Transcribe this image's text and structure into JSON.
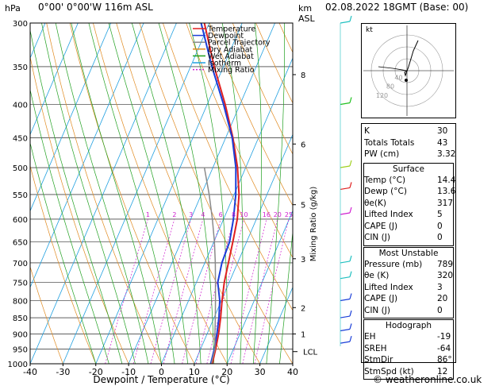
{
  "header": {
    "location": "0°00' 0°00'W 116m ASL",
    "datetime": "02.08.2022 18GMT (Base: 00)",
    "pressure_unit": "hPa",
    "height_unit": "km",
    "height_sub": "ASL"
  },
  "credit": "© weatheronline.co.uk",
  "colors": {
    "temperature": "#e02020",
    "dewpoint": "#1a3ed8",
    "parcel": "#8a8a8a",
    "dry_adiabat": "#e08a20",
    "wet_adiabat": "#20a020",
    "isotherm": "#20a0e0",
    "mixing_ratio": "#d020d0"
  },
  "legend": [
    {
      "label": "Temperature",
      "key": "temperature",
      "dash": false
    },
    {
      "label": "Dewpoint",
      "key": "dewpoint",
      "dash": false
    },
    {
      "label": "Parcel Trajectory",
      "key": "parcel",
      "dash": false
    },
    {
      "label": "Dry Adiabat",
      "key": "dry_adiabat",
      "dash": false
    },
    {
      "label": "Wet Adiabat",
      "key": "wet_adiabat",
      "dash": false
    },
    {
      "label": "Isotherm",
      "key": "isotherm",
      "dash": false
    },
    {
      "label": "Mixing Ratio",
      "key": "mixing_ratio",
      "dash": true
    }
  ],
  "chart_data": {
    "type": "line",
    "xlabel": "Dewpoint / Temperature (°C)",
    "ylabel": "",
    "y2label": "Mixing Ratio (g/kg)",
    "xlim": [
      -40,
      40
    ],
    "ylim": [
      1000,
      300
    ],
    "y_scale": "log",
    "x_ticks": [
      -40,
      -30,
      -20,
      -10,
      0,
      10,
      20,
      30,
      40
    ],
    "p_ticks": [
      300,
      350,
      400,
      450,
      500,
      550,
      600,
      650,
      700,
      750,
      800,
      850,
      900,
      950,
      1000
    ],
    "km_ticks": [
      {
        "p": 360,
        "label": "8"
      },
      {
        "p": 460,
        "label": "6"
      },
      {
        "p": 570,
        "label": "5"
      },
      {
        "p": 690,
        "label": "3"
      },
      {
        "p": 820,
        "label": "2"
      },
      {
        "p": 900,
        "label": "1"
      }
    ],
    "lcl_label": "LCL",
    "lcl_p": 958,
    "mixing_ratio_labels": [
      {
        "label": "1",
        "value": 1
      },
      {
        "label": "2",
        "value": 2
      },
      {
        "label": "3",
        "value": 3
      },
      {
        "label": "4",
        "value": 4
      },
      {
        "label": "6",
        "value": 6
      },
      {
        "label": "8",
        "value": 8
      },
      {
        "label": "10",
        "value": 10
      },
      {
        "label": "16",
        "value": 16
      },
      {
        "label": "20",
        "value": 20
      },
      {
        "label": "25",
        "value": 25
      }
    ],
    "series": [
      {
        "name": "Temperature",
        "key": "temperature",
        "points": [
          [
            1000,
            15.5
          ],
          [
            950,
            14.6
          ],
          [
            900,
            13.5
          ],
          [
            850,
            12
          ],
          [
            800,
            10.2
          ],
          [
            750,
            8.5
          ],
          [
            700,
            7.2
          ],
          [
            650,
            5.8
          ],
          [
            600,
            4.2
          ],
          [
            550,
            1.5
          ],
          [
            500,
            -2.5
          ],
          [
            450,
            -7.8
          ],
          [
            400,
            -14.5
          ],
          [
            350,
            -22.8
          ],
          [
            300,
            -31.5
          ]
        ]
      },
      {
        "name": "Dewpoint",
        "key": "dewpoint",
        "points": [
          [
            1000,
            15.0
          ],
          [
            950,
            14.2
          ],
          [
            900,
            13.0
          ],
          [
            850,
            11.5
          ],
          [
            800,
            9.5
          ],
          [
            750,
            6.5
          ],
          [
            700,
            5.2
          ],
          [
            650,
            4.8
          ],
          [
            600,
            3.0
          ],
          [
            550,
            0.5
          ],
          [
            500,
            -3.0
          ],
          [
            450,
            -8.0
          ],
          [
            400,
            -15.0
          ],
          [
            350,
            -23.5
          ],
          [
            300,
            -32.5
          ]
        ]
      },
      {
        "name": "Parcel Trajectory",
        "key": "parcel",
        "points": [
          [
            1000,
            15.2
          ],
          [
            950,
            14.4
          ],
          [
            900,
            12.4
          ],
          [
            850,
            10.4
          ],
          [
            800,
            8.2
          ],
          [
            750,
            5.8
          ],
          [
            700,
            3.2
          ],
          [
            650,
            0.2
          ],
          [
            600,
            -3.4
          ],
          [
            550,
            -7.6
          ],
          [
            500,
            -12.6
          ]
        ]
      }
    ]
  },
  "hodograph": {
    "unit": "kt",
    "ring_labels": [
      "40",
      "80",
      "120"
    ]
  },
  "indices": [
    {
      "label": "K",
      "value": "30"
    },
    {
      "label": "Totals Totals",
      "value": "43"
    },
    {
      "label": "PW (cm)",
      "value": "3.32"
    }
  ],
  "surface": {
    "title": "Surface",
    "rows": [
      {
        "label": "Temp (°C)",
        "value": "14.4"
      },
      {
        "label": "Dewp (°C)",
        "value": "13.6"
      },
      {
        "label": "θe(K)",
        "value": "317"
      },
      {
        "label": "Lifted Index",
        "value": "5"
      },
      {
        "label": "CAPE (J)",
        "value": "0"
      },
      {
        "label": "CIN (J)",
        "value": "0"
      }
    ]
  },
  "most_unstable": {
    "title": "Most Unstable",
    "rows": [
      {
        "label": "Pressure (mb)",
        "value": "789"
      },
      {
        "label": "θe (K)",
        "value": "320"
      },
      {
        "label": "Lifted Index",
        "value": "3"
      },
      {
        "label": "CAPE (J)",
        "value": "20"
      },
      {
        "label": "CIN (J)",
        "value": "0"
      }
    ]
  },
  "hodograph_table": {
    "title": "Hodograph",
    "rows": [
      {
        "label": "EH",
        "value": "-19"
      },
      {
        "label": "SREH",
        "value": "-64"
      },
      {
        "label": "StmDir",
        "value": "86°"
      },
      {
        "label": "StmSpd (kt)",
        "value": "12"
      }
    ]
  }
}
